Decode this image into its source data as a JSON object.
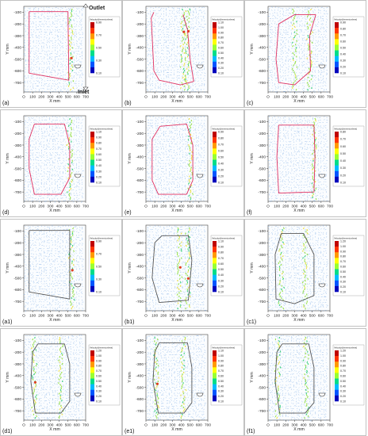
{
  "figure": {
    "panels": [
      {
        "id": "a",
        "label": "(a)",
        "scale": [
          0.9,
          0.7,
          0.5,
          0.3,
          0.1
        ],
        "annotations": [
          "Outlet",
          "Inlet"
        ]
      },
      {
        "id": "b",
        "label": "(b)",
        "scale": [
          1.1,
          1.0,
          0.9,
          0.8,
          0.7,
          0.6,
          0.5,
          0.4,
          0.3,
          0.2,
          0.1
        ],
        "annotations": []
      },
      {
        "id": "c",
        "label": "(c)",
        "scale": [
          0.9,
          0.8,
          0.7,
          0.6,
          0.5,
          0.4,
          0.3,
          0.2,
          0.1
        ],
        "annotations": []
      },
      {
        "id": "d",
        "label": "(d)",
        "scale": [
          1.1,
          0.9,
          0.8,
          0.7,
          0.6,
          0.5,
          0.4,
          0.3,
          0.2,
          0.1
        ],
        "annotations": []
      },
      {
        "id": "e",
        "label": "(e)",
        "scale": [
          0.9,
          0.8,
          0.7,
          0.6,
          0.5,
          0.4,
          0.3,
          0.2,
          0.1
        ],
        "annotations": []
      },
      {
        "id": "f",
        "label": "(f)",
        "scale": [
          0.8,
          0.7,
          0.6,
          0.5,
          0.4,
          0.3,
          0.2,
          0.1
        ],
        "annotations": []
      },
      {
        "id": "a1",
        "label": "(a1)",
        "scale": [
          0.9,
          0.7,
          0.5,
          0.3,
          0.1
        ],
        "annotations": []
      },
      {
        "id": "b1",
        "label": "(b1)",
        "scale": [
          1.1,
          0.9,
          0.8,
          0.7,
          0.6,
          0.5,
          0.4,
          0.3,
          0.2,
          0.1
        ],
        "annotations": []
      },
      {
        "id": "c1",
        "label": "(c1)",
        "scale": [
          1.2,
          1.0,
          0.9,
          0.8,
          0.7,
          0.6,
          0.5,
          0.4,
          0.3,
          0.2,
          0.1
        ],
        "annotations": []
      },
      {
        "id": "d1",
        "label": "(d1)",
        "scale": [
          1.2,
          1.0,
          0.9,
          0.8,
          0.7,
          0.6,
          0.5,
          0.4,
          0.3,
          0.2,
          0.1
        ],
        "annotations": []
      },
      {
        "id": "e1",
        "label": "(e1)",
        "scale": [
          1.1,
          1.0,
          0.9,
          0.8,
          0.7,
          0.6,
          0.5,
          0.4,
          0.3,
          0.2,
          0.1
        ],
        "annotations": []
      },
      {
        "id": "f1",
        "label": "(f1)",
        "scale": [
          1.2,
          1.0,
          0.9,
          0.8,
          0.7,
          0.6,
          0.5,
          0.4,
          0.3,
          0.2,
          0.1
        ],
        "annotations": []
      }
    ],
    "colorbar_title": "Velocity(dimensionless)",
    "colorbar_colors": [
      "#c00000",
      "#ff3300",
      "#ff9900",
      "#ffff00",
      "#99ff33",
      "#00dd88",
      "#00bbff",
      "#0055ff",
      "#0000bb"
    ],
    "vector_color": "#6a9fe0",
    "path_colors": {
      "top_rows": "#e03060",
      "bottom_rows": "#555555"
    }
  },
  "chart_data": {
    "type": "vector-field",
    "panels": [
      "(a)",
      "(b)",
      "(c)",
      "(d)",
      "(e)",
      "(f)",
      "(a1)",
      "(b1)",
      "(c1)",
      "(d1)",
      "(e1)",
      "(f1)"
    ],
    "xlabel": "X mm",
    "ylabel": "Y mm",
    "xticks": [
      0,
      100,
      200,
      300,
      400,
      500,
      600,
      700
    ],
    "yticks": [
      -100,
      -200,
      -300,
      -400,
      -500,
      -600,
      -700
    ],
    "xlim": [
      0,
      700
    ],
    "ylim": [
      -780,
      -50
    ],
    "colorbar": {
      "label": "Velocity(dimensionless)",
      "range": [
        0.1,
        1.2
      ]
    },
    "grid": false
  }
}
